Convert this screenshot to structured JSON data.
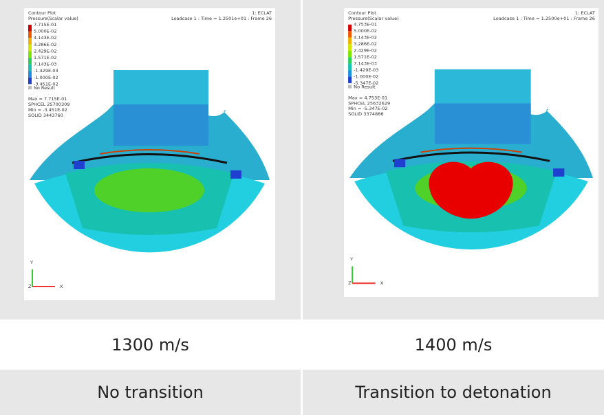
{
  "panels": [
    {
      "plot": {
        "title": "Contour Plot",
        "subtitle": "Pressure(Scalar value)",
        "model": "1: ECLAT",
        "loadcase": "Loadcase 1 : Time = 1.2501e+01 : Frame 26",
        "legend": [
          "7.715E-01",
          "5.000E-02",
          "4.143E-02",
          "3.286E-02",
          "2.429E-02",
          "1.571E-02",
          "7.143E-03",
          "-1.429E-03",
          "-1.000E-02",
          "-3.451E-02"
        ],
        "no_result": "No Result",
        "info": [
          "Max = 7.715E-01",
          "SPHCEL 25700309",
          "Min = -3.451E-02",
          "SOLID 3443760"
        ],
        "axes": {
          "y": "Y",
          "z": "Z",
          "x": "X"
        }
      },
      "speed": "1300 m/s",
      "outcome": "No transition"
    },
    {
      "plot": {
        "title": "Contour Plot",
        "subtitle": "Pressure(Scalar value)",
        "model": "1: ECLAT",
        "loadcase": "Loadcase 1 : Time = 1.2500e+01 : Frame 26",
        "legend": [
          "4.753E-01",
          "5.000E-02",
          "4.143E-02",
          "3.286E-02",
          "2.429E-02",
          "1.571E-02",
          "7.143E-03",
          "-1.429E-03",
          "-1.000E-02",
          "-5.347E-02"
        ],
        "no_result": "No Result",
        "info": [
          "Max = 4.753E-01",
          "SPHCEL 25632629",
          "Min = -5.347E-02",
          "SOLID 3374886"
        ],
        "axes": {
          "y": "Y",
          "z": "Z",
          "x": "X"
        }
      },
      "speed": "1400 m/s",
      "outcome": "Transition to detonation"
    }
  ]
}
